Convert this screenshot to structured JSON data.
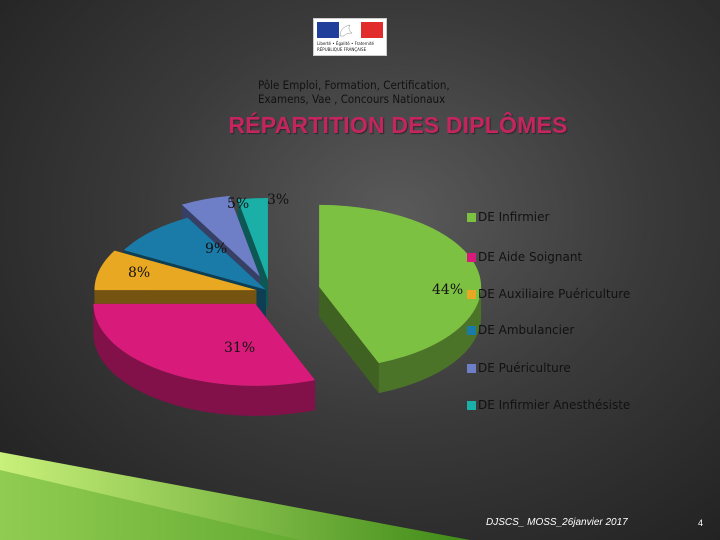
{
  "header": {
    "logo_text": [
      "Liberté • Égalité • Fraternité",
      "RÉPUBLIQUE FRANÇAISE"
    ],
    "line1": "Pôle Emploi, Formation, Certification,",
    "line2": "Examens, Vae , Concours Nationaux"
  },
  "chart_data": {
    "type": "pie",
    "title": "RÉPARTITION DES DIPLÔMES",
    "labels": [
      "DE Infirmier",
      "DE Aide Soignant",
      "DE Auxiliaire Puériculture",
      "DE Ambulancier",
      "DE Puériculture",
      "DE Infirmier Anesthésiste"
    ],
    "values": [
      44,
      31,
      8,
      9,
      5,
      3
    ],
    "value_labels": [
      "44%",
      "31%",
      "8%",
      "9%",
      "5%",
      "3%"
    ],
    "colors": [
      "#7dc142",
      "#d81b7a",
      "#e9a821",
      "#1a7ba8",
      "#6e7fc8",
      "#1ab0a7"
    ],
    "legend_position": "right",
    "style": "3d-exploded"
  },
  "footer": {
    "text": "DJSCS_ MOSS_26janvier 2017",
    "page": "4"
  }
}
